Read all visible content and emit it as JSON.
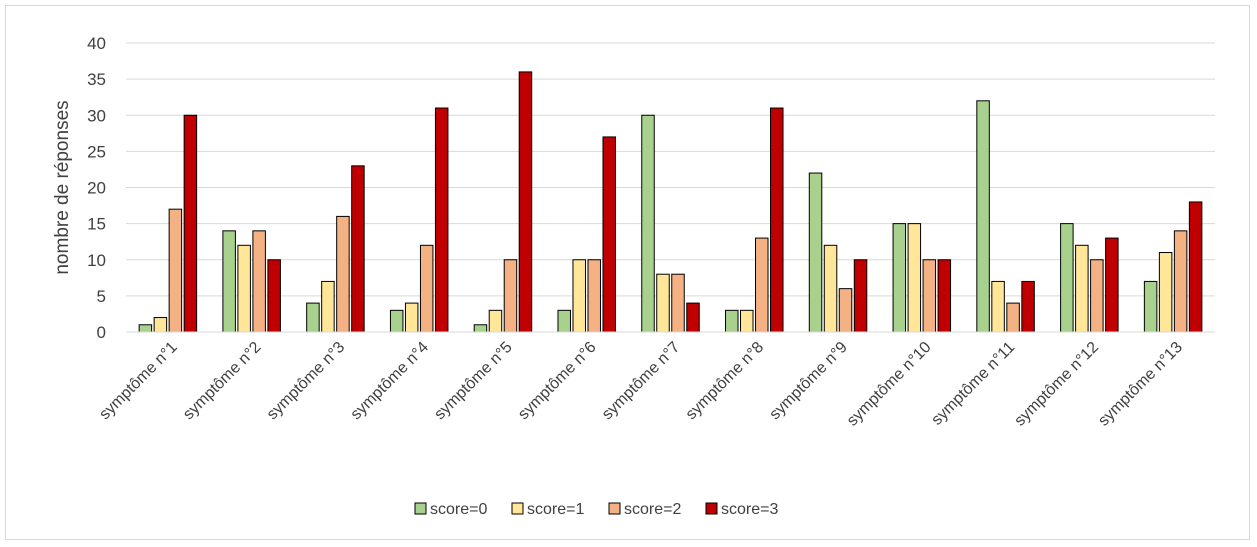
{
  "chart_data": {
    "type": "bar",
    "categories": [
      "symptôme n°1",
      "symptôme n°2",
      "symptôme n°3",
      "symptôme n°4",
      "symptôme n°5",
      "symptôme n°6",
      "symptôme n°7",
      "symptôme n°8",
      "symptôme n°9",
      "symptôme n°10",
      "symptôme n°11",
      "symptôme n°12",
      "symptôme n°13"
    ],
    "series": [
      {
        "name": "score=0",
        "color": "#a9d18e",
        "values": [
          1,
          14,
          4,
          3,
          1,
          3,
          30,
          3,
          22,
          15,
          32,
          15,
          7
        ]
      },
      {
        "name": "score=1",
        "color": "#ffe699",
        "values": [
          2,
          12,
          7,
          4,
          3,
          10,
          8,
          3,
          12,
          15,
          7,
          12,
          11
        ]
      },
      {
        "name": "score=2",
        "color": "#f4b183",
        "values": [
          17,
          14,
          16,
          12,
          10,
          10,
          8,
          13,
          6,
          10,
          4,
          10,
          14
        ]
      },
      {
        "name": "score=3",
        "color": "#c00000",
        "values": [
          30,
          10,
          23,
          31,
          36,
          27,
          4,
          31,
          10,
          10,
          7,
          13,
          18
        ]
      }
    ],
    "title": "",
    "xlabel": "",
    "ylabel": "nombre de réponses",
    "ylim": [
      0,
      40
    ],
    "yticks": [
      "0",
      "5",
      "10",
      "15",
      "20",
      "25",
      "30",
      "35",
      "40"
    ],
    "grid": true,
    "legend": "bottom"
  }
}
